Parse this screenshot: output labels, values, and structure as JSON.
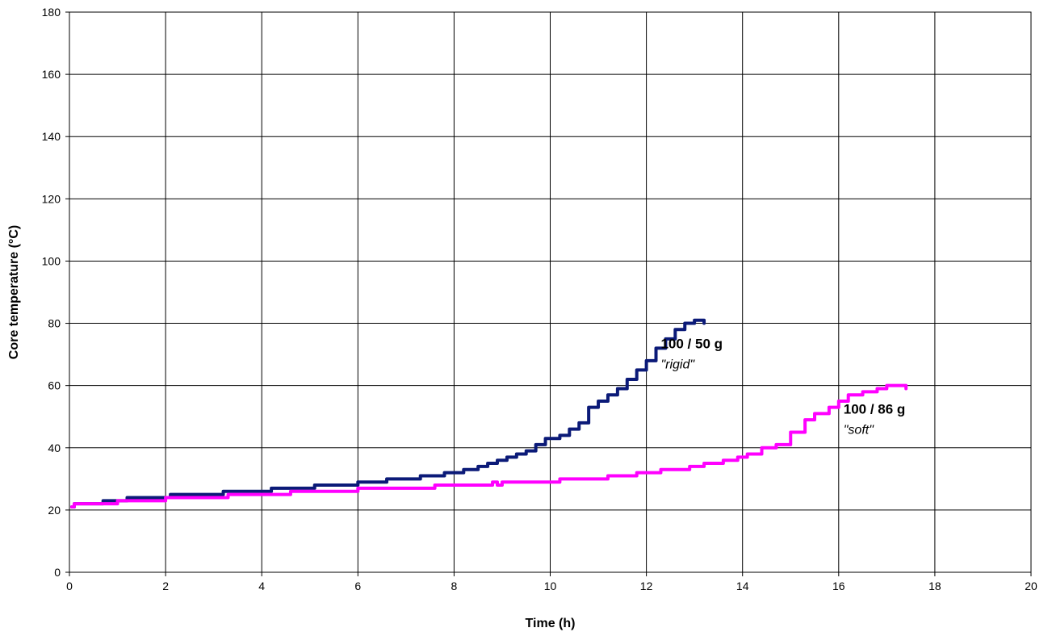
{
  "chart_data": {
    "type": "line",
    "title": "",
    "xlabel": "Time (h)",
    "ylabel": "Core temperature (°C)",
    "xlim": [
      0,
      20
    ],
    "ylim": [
      0,
      180
    ],
    "x_ticks": [
      "0",
      "2",
      "4",
      "6",
      "8",
      "10",
      "12",
      "14",
      "16",
      "18",
      "20"
    ],
    "y_ticks": [
      "0",
      "20",
      "40",
      "60",
      "80",
      "100",
      "120",
      "140",
      "160",
      "180"
    ],
    "grid": true,
    "legend": "none",
    "series": [
      {
        "color": "#0b1a78",
        "x": [
          0.05,
          0.1,
          0.7,
          1.2,
          2.1,
          3.2,
          4.2,
          5.1,
          6.0,
          6.6,
          7.3,
          7.8,
          8.2,
          8.5,
          8.7,
          8.9,
          9.1,
          9.3,
          9.5,
          9.7,
          9.9,
          10.2,
          10.4,
          10.6,
          10.8,
          11.0,
          11.2,
          11.4,
          11.6,
          11.8,
          12.0,
          12.2,
          12.4,
          12.6,
          12.8,
          13.0,
          13.1,
          13.2
        ],
        "y": [
          21,
          22,
          23,
          24,
          25,
          26,
          27,
          28,
          29,
          30,
          31,
          32,
          33,
          34,
          35,
          36,
          37,
          38,
          39,
          41,
          43,
          44,
          46,
          48,
          53,
          55,
          57,
          59,
          62,
          65,
          68,
          72,
          75,
          78,
          80,
          81,
          81,
          80
        ],
        "annotation": {
          "line1": "100 / 50 g",
          "line2": "\"rigid\""
        }
      },
      {
        "color": "#ff00ff",
        "x": [
          0.05,
          0.1,
          1.0,
          2.0,
          3.3,
          4.6,
          6.0,
          7.6,
          8.7,
          8.8,
          8.9,
          9.0,
          10.2,
          11.2,
          11.8,
          12.3,
          12.9,
          13.2,
          13.6,
          13.9,
          14.1,
          14.4,
          14.7,
          15.0,
          15.3,
          15.5,
          15.8,
          16.0,
          16.2,
          16.5,
          16.8,
          17.0,
          17.3,
          17.4
        ],
        "y": [
          21,
          22,
          23,
          24,
          25,
          26,
          27,
          28,
          28,
          29,
          28,
          29,
          30,
          31,
          32,
          33,
          34,
          35,
          36,
          37,
          38,
          40,
          41,
          45,
          49,
          51,
          53,
          55,
          57,
          58,
          59,
          60,
          60,
          59
        ],
        "annotation": {
          "line1": "100 / 86 g",
          "line2": "\"soft\""
        }
      }
    ]
  }
}
